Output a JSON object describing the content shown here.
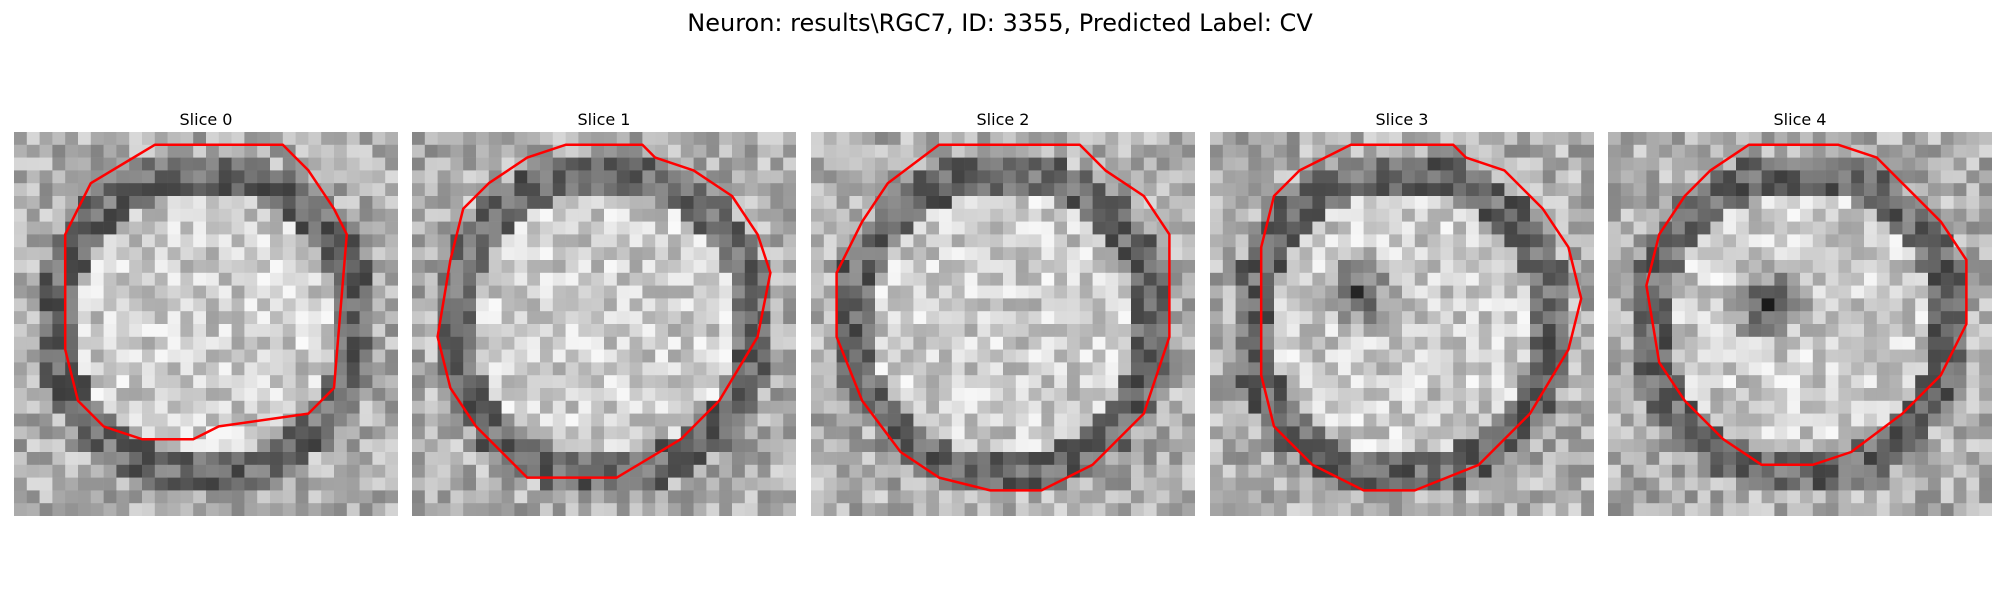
{
  "figure": {
    "title": "Neuron: results\\RGC7, ID: 3355, Predicted Label: CV"
  },
  "outline_color": "#ff0000",
  "slices": [
    {
      "title": "Slice 0",
      "outline": [
        [
          21,
          1
        ],
        [
          20,
          0
        ],
        [
          10,
          0
        ],
        [
          5,
          3
        ],
        [
          3,
          7
        ],
        [
          3,
          16
        ],
        [
          4,
          20
        ],
        [
          6,
          22
        ],
        [
          9,
          23
        ],
        [
          13,
          23
        ],
        [
          15,
          22
        ],
        [
          22,
          21
        ],
        [
          24,
          19
        ],
        [
          25,
          7
        ],
        [
          24,
          5
        ],
        [
          22,
          2
        ]
      ],
      "dark_center": null
    },
    {
      "title": "Slice 1",
      "outline": [
        [
          18,
          1
        ],
        [
          17,
          0
        ],
        [
          11,
          0
        ],
        [
          8,
          1
        ],
        [
          5,
          3
        ],
        [
          3,
          5
        ],
        [
          2,
          9
        ],
        [
          1,
          15
        ],
        [
          2,
          19
        ],
        [
          4,
          22
        ],
        [
          8,
          26
        ],
        [
          11,
          26
        ],
        [
          15,
          26
        ],
        [
          20,
          23
        ],
        [
          23,
          20
        ],
        [
          26,
          15
        ],
        [
          27,
          10
        ],
        [
          26,
          7
        ],
        [
          24,
          4
        ],
        [
          21,
          2
        ]
      ],
      "dark_center": null
    },
    {
      "title": "Slice 2",
      "outline": [
        [
          20,
          0
        ],
        [
          9,
          0
        ],
        [
          5,
          3
        ],
        [
          3,
          6
        ],
        [
          1,
          10
        ],
        [
          1,
          15
        ],
        [
          3,
          20
        ],
        [
          6,
          24
        ],
        [
          9,
          26
        ],
        [
          13,
          27
        ],
        [
          17,
          27
        ],
        [
          21,
          25
        ],
        [
          25,
          21
        ],
        [
          27,
          15
        ],
        [
          27,
          7
        ],
        [
          25,
          4
        ],
        [
          22,
          2
        ]
      ],
      "dark_center": null
    },
    {
      "title": "Slice 3",
      "outline": [
        [
          19,
          1
        ],
        [
          18,
          0
        ],
        [
          10,
          0
        ],
        [
          6,
          2
        ],
        [
          4,
          4
        ],
        [
          3,
          8
        ],
        [
          3,
          18
        ],
        [
          4,
          22
        ],
        [
          7,
          25
        ],
        [
          11,
          27
        ],
        [
          15,
          27
        ],
        [
          20,
          25
        ],
        [
          24,
          21
        ],
        [
          27,
          16
        ],
        [
          28,
          12
        ],
        [
          27,
          8
        ],
        [
          25,
          5
        ],
        [
          22,
          2
        ]
      ],
      "dark_center": [
        11,
        12
      ]
    },
    {
      "title": "Slice 4",
      "outline": [
        [
          17,
          0
        ],
        [
          10,
          0
        ],
        [
          7,
          2
        ],
        [
          5,
          4
        ],
        [
          3,
          7
        ],
        [
          2,
          11
        ],
        [
          3,
          17
        ],
        [
          5,
          20
        ],
        [
          8,
          23
        ],
        [
          11,
          25
        ],
        [
          15,
          25
        ],
        [
          18,
          24
        ],
        [
          22,
          21
        ],
        [
          25,
          18
        ],
        [
          27,
          14
        ],
        [
          27,
          9
        ],
        [
          25,
          6
        ],
        [
          22,
          3
        ],
        [
          20,
          1
        ]
      ],
      "dark_center": [
        12,
        13
      ]
    }
  ]
}
